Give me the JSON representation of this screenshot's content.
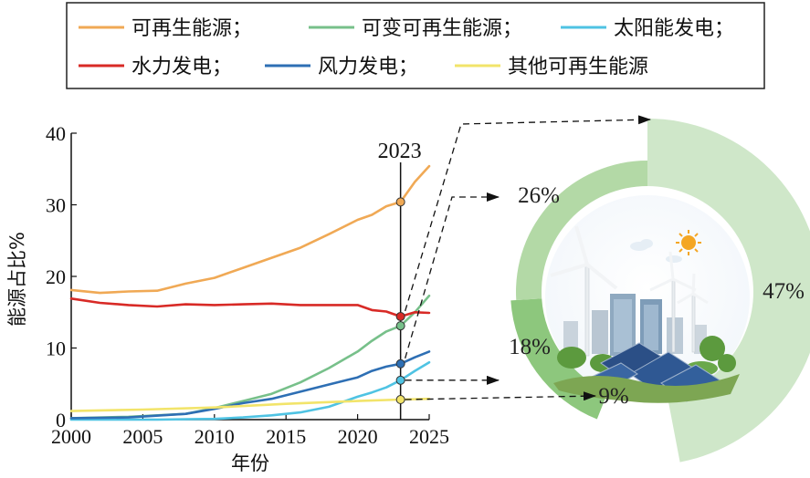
{
  "chart_data": [
    {
      "type": "line",
      "xlabel": "年份",
      "ylabel": "能源占比%",
      "xlim": [
        2000,
        2025
      ],
      "ylim": [
        0,
        40
      ],
      "xticks": [
        "2000",
        "2005",
        "2010",
        "2015",
        "2020",
        "2025"
      ],
      "yticks": [
        "0",
        "10",
        "20",
        "30",
        "40"
      ],
      "highlight_year": "2023",
      "legend_position": "top",
      "series": [
        {
          "name": "可再生能源",
          "color": "#f0a955",
          "x": [
            2000,
            2002,
            2004,
            2006,
            2008,
            2010,
            2012,
            2014,
            2016,
            2018,
            2020,
            2021,
            2022,
            2023,
            2024,
            2025
          ],
          "y": [
            18.1,
            17.7,
            17.9,
            18.0,
            19.0,
            19.8,
            21.2,
            22.6,
            24.0,
            25.9,
            27.9,
            28.6,
            29.8,
            30.4,
            33.2,
            35.4
          ],
          "marker_2023": 30.4
        },
        {
          "name": "可变可再生能源",
          "color": "#77c08a",
          "x": [
            2000,
            2004,
            2008,
            2010,
            2012,
            2014,
            2016,
            2018,
            2020,
            2021,
            2022,
            2023,
            2024,
            2025
          ],
          "y": [
            0.2,
            0.4,
            0.8,
            1.6,
            2.6,
            3.6,
            5.2,
            7.2,
            9.5,
            11.0,
            12.3,
            13.1,
            15.0,
            17.3
          ],
          "marker_2023": 13.1
        },
        {
          "name": "太阳能发电",
          "color": "#4fc3e3",
          "x": [
            2000,
            2006,
            2008,
            2010,
            2012,
            2014,
            2016,
            2018,
            2020,
            2021,
            2022,
            2023,
            2024,
            2025
          ],
          "y": [
            0,
            0,
            0.05,
            0.1,
            0.3,
            0.6,
            1.0,
            1.8,
            3.2,
            3.8,
            4.5,
            5.5,
            6.8,
            8.0
          ],
          "marker_2023": 5.5
        },
        {
          "name": "水力发电",
          "color": "#d82a26",
          "x": [
            2000,
            2002,
            2004,
            2006,
            2008,
            2010,
            2012,
            2014,
            2016,
            2018,
            2020,
            2021,
            2022,
            2023,
            2024,
            2025
          ],
          "y": [
            16.9,
            16.3,
            16.0,
            15.8,
            16.1,
            16.0,
            16.1,
            16.2,
            16.0,
            16.0,
            16.0,
            15.3,
            15.1,
            14.4,
            15.0,
            14.9
          ],
          "marker_2023": 14.4
        },
        {
          "name": "风力发电",
          "color": "#2e6fb4",
          "x": [
            2000,
            2004,
            2008,
            2010,
            2012,
            2014,
            2016,
            2018,
            2020,
            2021,
            2022,
            2023,
            2024,
            2025
          ],
          "y": [
            0.2,
            0.3,
            0.8,
            1.5,
            2.3,
            2.9,
            3.9,
            4.9,
            5.9,
            6.8,
            7.4,
            7.8,
            8.7,
            9.5
          ],
          "marker_2023": 7.8
        },
        {
          "name": "其他可再生能源",
          "color": "#f2e46a",
          "x": [
            2000,
            2005,
            2010,
            2015,
            2020,
            2023,
            2025
          ],
          "y": [
            1.2,
            1.4,
            1.7,
            2.2,
            2.6,
            2.8,
            2.9
          ],
          "marker_2023": 2.8
        }
      ]
    },
    {
      "type": "pie",
      "style": "donut",
      "slices": [
        {
          "label": "47%",
          "value": 47,
          "color": "#cfe7c9"
        },
        {
          "label": "9%",
          "value": 9,
          "color": "#4e8a3f"
        },
        {
          "label": "18%",
          "value": 18,
          "color": "#8dc77d"
        },
        {
          "label": "26%",
          "value": 26,
          "color": "#b3d9a6"
        }
      ]
    }
  ]
}
